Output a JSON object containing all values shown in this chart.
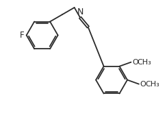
{
  "background_color": "#ffffff",
  "line_color": "#2a2a2a",
  "line_width": 1.3,
  "text_color": "#2a2a2a",
  "font_size": 8.5,
  "fig_width": 2.44,
  "fig_height": 1.97,
  "dpi": 100,
  "xlim": [
    0,
    10
  ],
  "ylim": [
    0,
    8.1
  ]
}
